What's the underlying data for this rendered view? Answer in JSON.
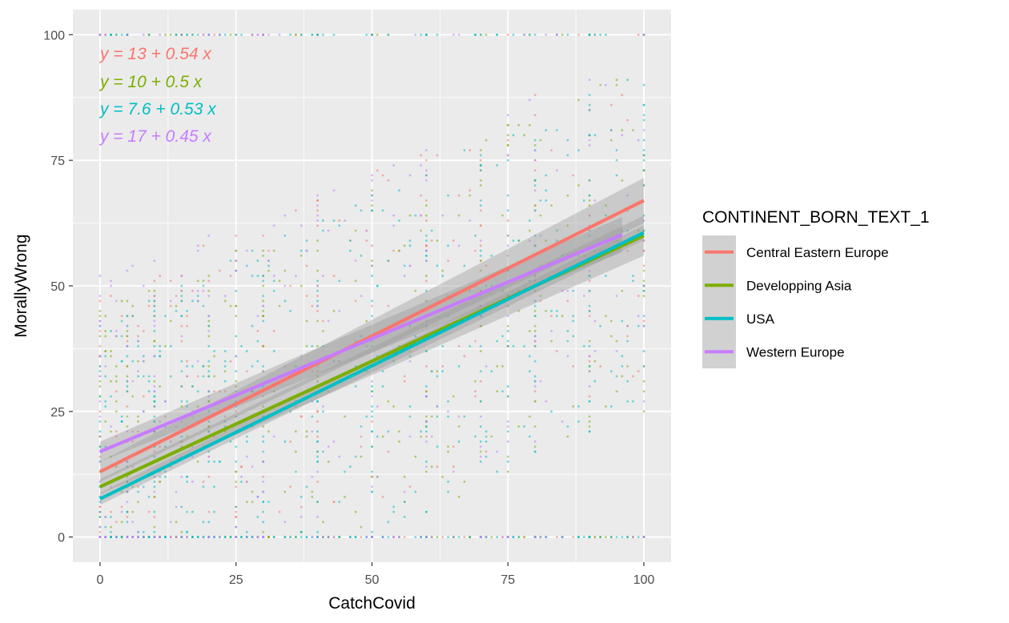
{
  "chart_data": {
    "type": "scatter",
    "xlabel": "CatchCovid",
    "ylabel": "MorallyWrong",
    "xlim": [
      -5,
      105
    ],
    "ylim": [
      -5,
      105
    ],
    "x_ticks": [
      0,
      25,
      50,
      75,
      100
    ],
    "y_ticks": [
      0,
      25,
      50,
      75,
      100
    ],
    "grid": true,
    "legend": {
      "title": "CONTINENT_BORN_TEXT_1",
      "position": "right"
    },
    "series": [
      {
        "name": "Central Eastern Europe",
        "color": "#F8766D",
        "fit": {
          "intercept": 13,
          "slope": 0.54,
          "x_range": [
            0,
            100
          ],
          "ci_halfwidth": [
            2.0,
            4.5
          ]
        },
        "equation": "y = 13 + 0.54 x"
      },
      {
        "name": "Developping Asia",
        "color": "#7CAE00",
        "fit": {
          "intercept": 10,
          "slope": 0.5,
          "x_range": [
            0,
            100
          ],
          "ci_halfwidth": [
            1.5,
            4.0
          ]
        },
        "equation": "y = 10 + 0.5 x"
      },
      {
        "name": "USA",
        "color": "#00BFC4",
        "fit": {
          "intercept": 7.6,
          "slope": 0.53,
          "x_range": [
            0,
            100
          ],
          "ci_halfwidth": [
            1.2,
            1.5
          ]
        },
        "equation": "y = 7.6 + 0.53 x"
      },
      {
        "name": "Western Europe",
        "color": "#C77CFF",
        "fit": {
          "intercept": 17,
          "slope": 0.45,
          "x_range": [
            0,
            96
          ],
          "ci_halfwidth": [
            2.0,
            3.5
          ]
        },
        "equation": "y = 17 + 0.45 x"
      }
    ]
  }
}
